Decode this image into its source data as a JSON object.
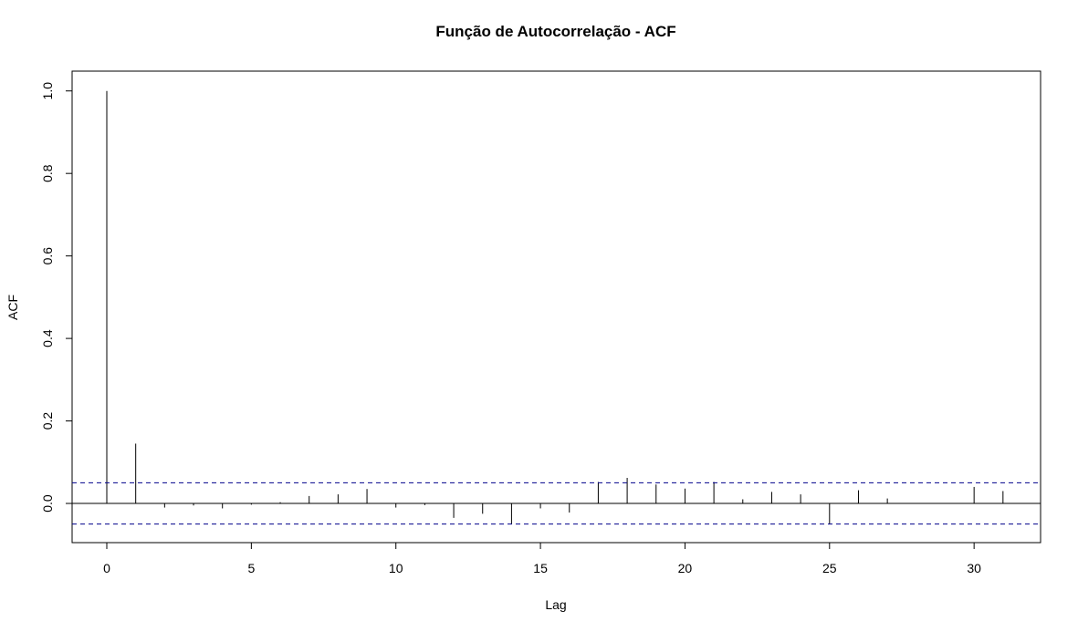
{
  "chart_data": {
    "type": "bar",
    "subtype": "acf",
    "title": "Função de Autocorrelação - ACF",
    "xlabel": "Lag",
    "ylabel": "ACF",
    "xlim": [
      -1.2,
      32.3
    ],
    "ylim": [
      -0.095,
      1.048
    ],
    "x_ticks": [
      0,
      5,
      10,
      15,
      20,
      25,
      30
    ],
    "x_tick_labels": [
      "0",
      "5",
      "10",
      "15",
      "20",
      "25",
      "30"
    ],
    "y_ticks": [
      0.0,
      0.2,
      0.4,
      0.6,
      0.8,
      1.0
    ],
    "y_tick_labels": [
      "0.0",
      "0.2",
      "0.4",
      "0.6",
      "0.8",
      "1.0"
    ],
    "lags": [
      0,
      1,
      2,
      3,
      4,
      5,
      6,
      7,
      8,
      9,
      10,
      11,
      12,
      13,
      14,
      15,
      16,
      17,
      18,
      19,
      20,
      21,
      22,
      23,
      24,
      25,
      26,
      27,
      28,
      29,
      30,
      31
    ],
    "values": [
      1.0,
      0.145,
      -0.01,
      -0.005,
      -0.012,
      -0.003,
      0.003,
      0.018,
      0.022,
      0.035,
      -0.01,
      -0.004,
      -0.035,
      -0.025,
      -0.05,
      -0.012,
      -0.022,
      0.052,
      0.062,
      0.046,
      0.036,
      0.052,
      0.01,
      0.028,
      0.022,
      -0.05,
      0.032,
      0.012,
      0.0,
      0.0,
      0.04,
      0.03
    ],
    "confidence_bound": 0.05,
    "grid": false,
    "colors": {
      "bars": "#000000",
      "bounds": "#00008B",
      "frame": "#000000"
    }
  }
}
